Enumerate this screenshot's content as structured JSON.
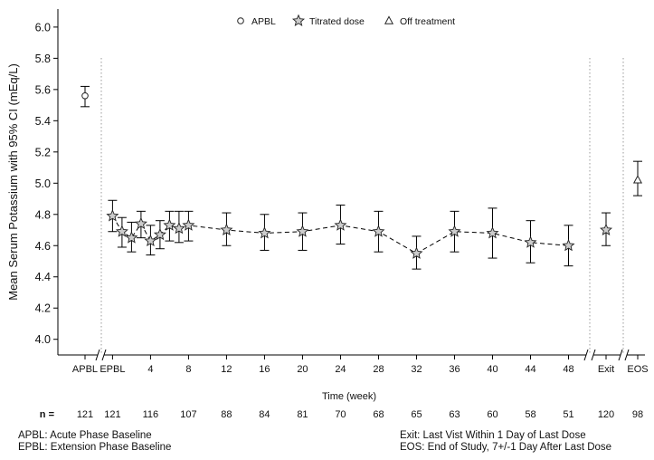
{
  "chart_data": {
    "type": "line",
    "xlabel": "Time (week)",
    "ylabel": "Mean Serum Potassium with 95% CI (mEq/L)",
    "ylim": [
      3.9,
      6.1
    ],
    "yticks": [
      "4.0",
      "4.2",
      "4.4",
      "4.6",
      "4.8",
      "5.0",
      "5.2",
      "5.4",
      "5.6",
      "5.8",
      "6.0"
    ],
    "legend_position": "top-center",
    "legend": [
      {
        "label": "APBL",
        "marker": "circle"
      },
      {
        "label": "Titrated dose",
        "marker": "star"
      },
      {
        "label": "Off treatment",
        "marker": "triangle"
      }
    ],
    "x_tick_labels": [
      "APBL",
      "EPBL",
      "4",
      "8",
      "12",
      "16",
      "20",
      "24",
      "28",
      "32",
      "36",
      "40",
      "44",
      "48",
      "Exit",
      "EOS"
    ],
    "n_label": "n =",
    "n_row": [
      {
        "at": "APBL",
        "n": "121"
      },
      {
        "at": "EPBL",
        "n": "121"
      },
      {
        "at": "4",
        "n": "116"
      },
      {
        "at": "8",
        "n": "107"
      },
      {
        "at": "12",
        "n": "88"
      },
      {
        "at": "16",
        "n": "84"
      },
      {
        "at": "20",
        "n": "81"
      },
      {
        "at": "24",
        "n": "70"
      },
      {
        "at": "28",
        "n": "68"
      },
      {
        "at": "32",
        "n": "65"
      },
      {
        "at": "36",
        "n": "63"
      },
      {
        "at": "40",
        "n": "60"
      },
      {
        "at": "44",
        "n": "58"
      },
      {
        "at": "48",
        "n": "51"
      },
      {
        "at": "Exit",
        "n": "120"
      },
      {
        "at": "EOS",
        "n": "98"
      }
    ],
    "series": [
      {
        "name": "APBL",
        "marker": "circle",
        "connected": false,
        "points": [
          {
            "x": "APBL",
            "y": 5.56,
            "lo": 5.49,
            "hi": 5.62
          }
        ]
      },
      {
        "name": "Titrated dose",
        "marker": "star",
        "connected": true,
        "points": [
          {
            "x": 0,
            "y": 4.79,
            "lo": 4.69,
            "hi": 4.89
          },
          {
            "x": 1,
            "y": 4.69,
            "lo": 4.59,
            "hi": 4.78
          },
          {
            "x": 2,
            "y": 4.65,
            "lo": 4.56,
            "hi": 4.75
          },
          {
            "x": 3,
            "y": 4.74,
            "lo": 4.65,
            "hi": 4.82
          },
          {
            "x": 4,
            "y": 4.63,
            "lo": 4.54,
            "hi": 4.73
          },
          {
            "x": 5,
            "y": 4.67,
            "lo": 4.58,
            "hi": 4.76
          },
          {
            "x": 6,
            "y": 4.73,
            "lo": 4.63,
            "hi": 4.82
          },
          {
            "x": 7,
            "y": 4.71,
            "lo": 4.62,
            "hi": 4.82
          },
          {
            "x": 8,
            "y": 4.73,
            "lo": 4.63,
            "hi": 4.82
          },
          {
            "x": 12,
            "y": 4.7,
            "lo": 4.6,
            "hi": 4.81
          },
          {
            "x": 16,
            "y": 4.68,
            "lo": 4.57,
            "hi": 4.8
          },
          {
            "x": 20,
            "y": 4.69,
            "lo": 4.57,
            "hi": 4.81
          },
          {
            "x": 24,
            "y": 4.73,
            "lo": 4.61,
            "hi": 4.86
          },
          {
            "x": 28,
            "y": 4.69,
            "lo": 4.56,
            "hi": 4.82
          },
          {
            "x": 32,
            "y": 4.55,
            "lo": 4.45,
            "hi": 4.66
          },
          {
            "x": 36,
            "y": 4.69,
            "lo": 4.56,
            "hi": 4.82
          },
          {
            "x": 40,
            "y": 4.68,
            "lo": 4.52,
            "hi": 4.84
          },
          {
            "x": 44,
            "y": 4.62,
            "lo": 4.49,
            "hi": 4.76
          },
          {
            "x": 48,
            "y": 4.6,
            "lo": 4.47,
            "hi": 4.73
          }
        ]
      },
      {
        "name": "Titrated dose",
        "marker": "star",
        "connected": false,
        "points": [
          {
            "x": "Exit",
            "y": 4.7,
            "lo": 4.6,
            "hi": 4.81
          }
        ]
      },
      {
        "name": "Off treatment",
        "marker": "triangle",
        "connected": false,
        "points": [
          {
            "x": "EOS",
            "y": 5.02,
            "lo": 4.92,
            "hi": 5.14
          }
        ]
      }
    ],
    "footnotes_left": [
      "APBL: Acute Phase Baseline",
      "EPBL: Extension Phase Baseline"
    ],
    "footnotes_right": [
      "Exit: Last Vist Within 1 Day of Last Dose",
      "EOS: End of Study, 7+/-1 Day After Last Dose"
    ],
    "colors": {
      "line": "#000000",
      "marker_fill": "#cccccc",
      "divider": "#9a9a9a"
    }
  }
}
